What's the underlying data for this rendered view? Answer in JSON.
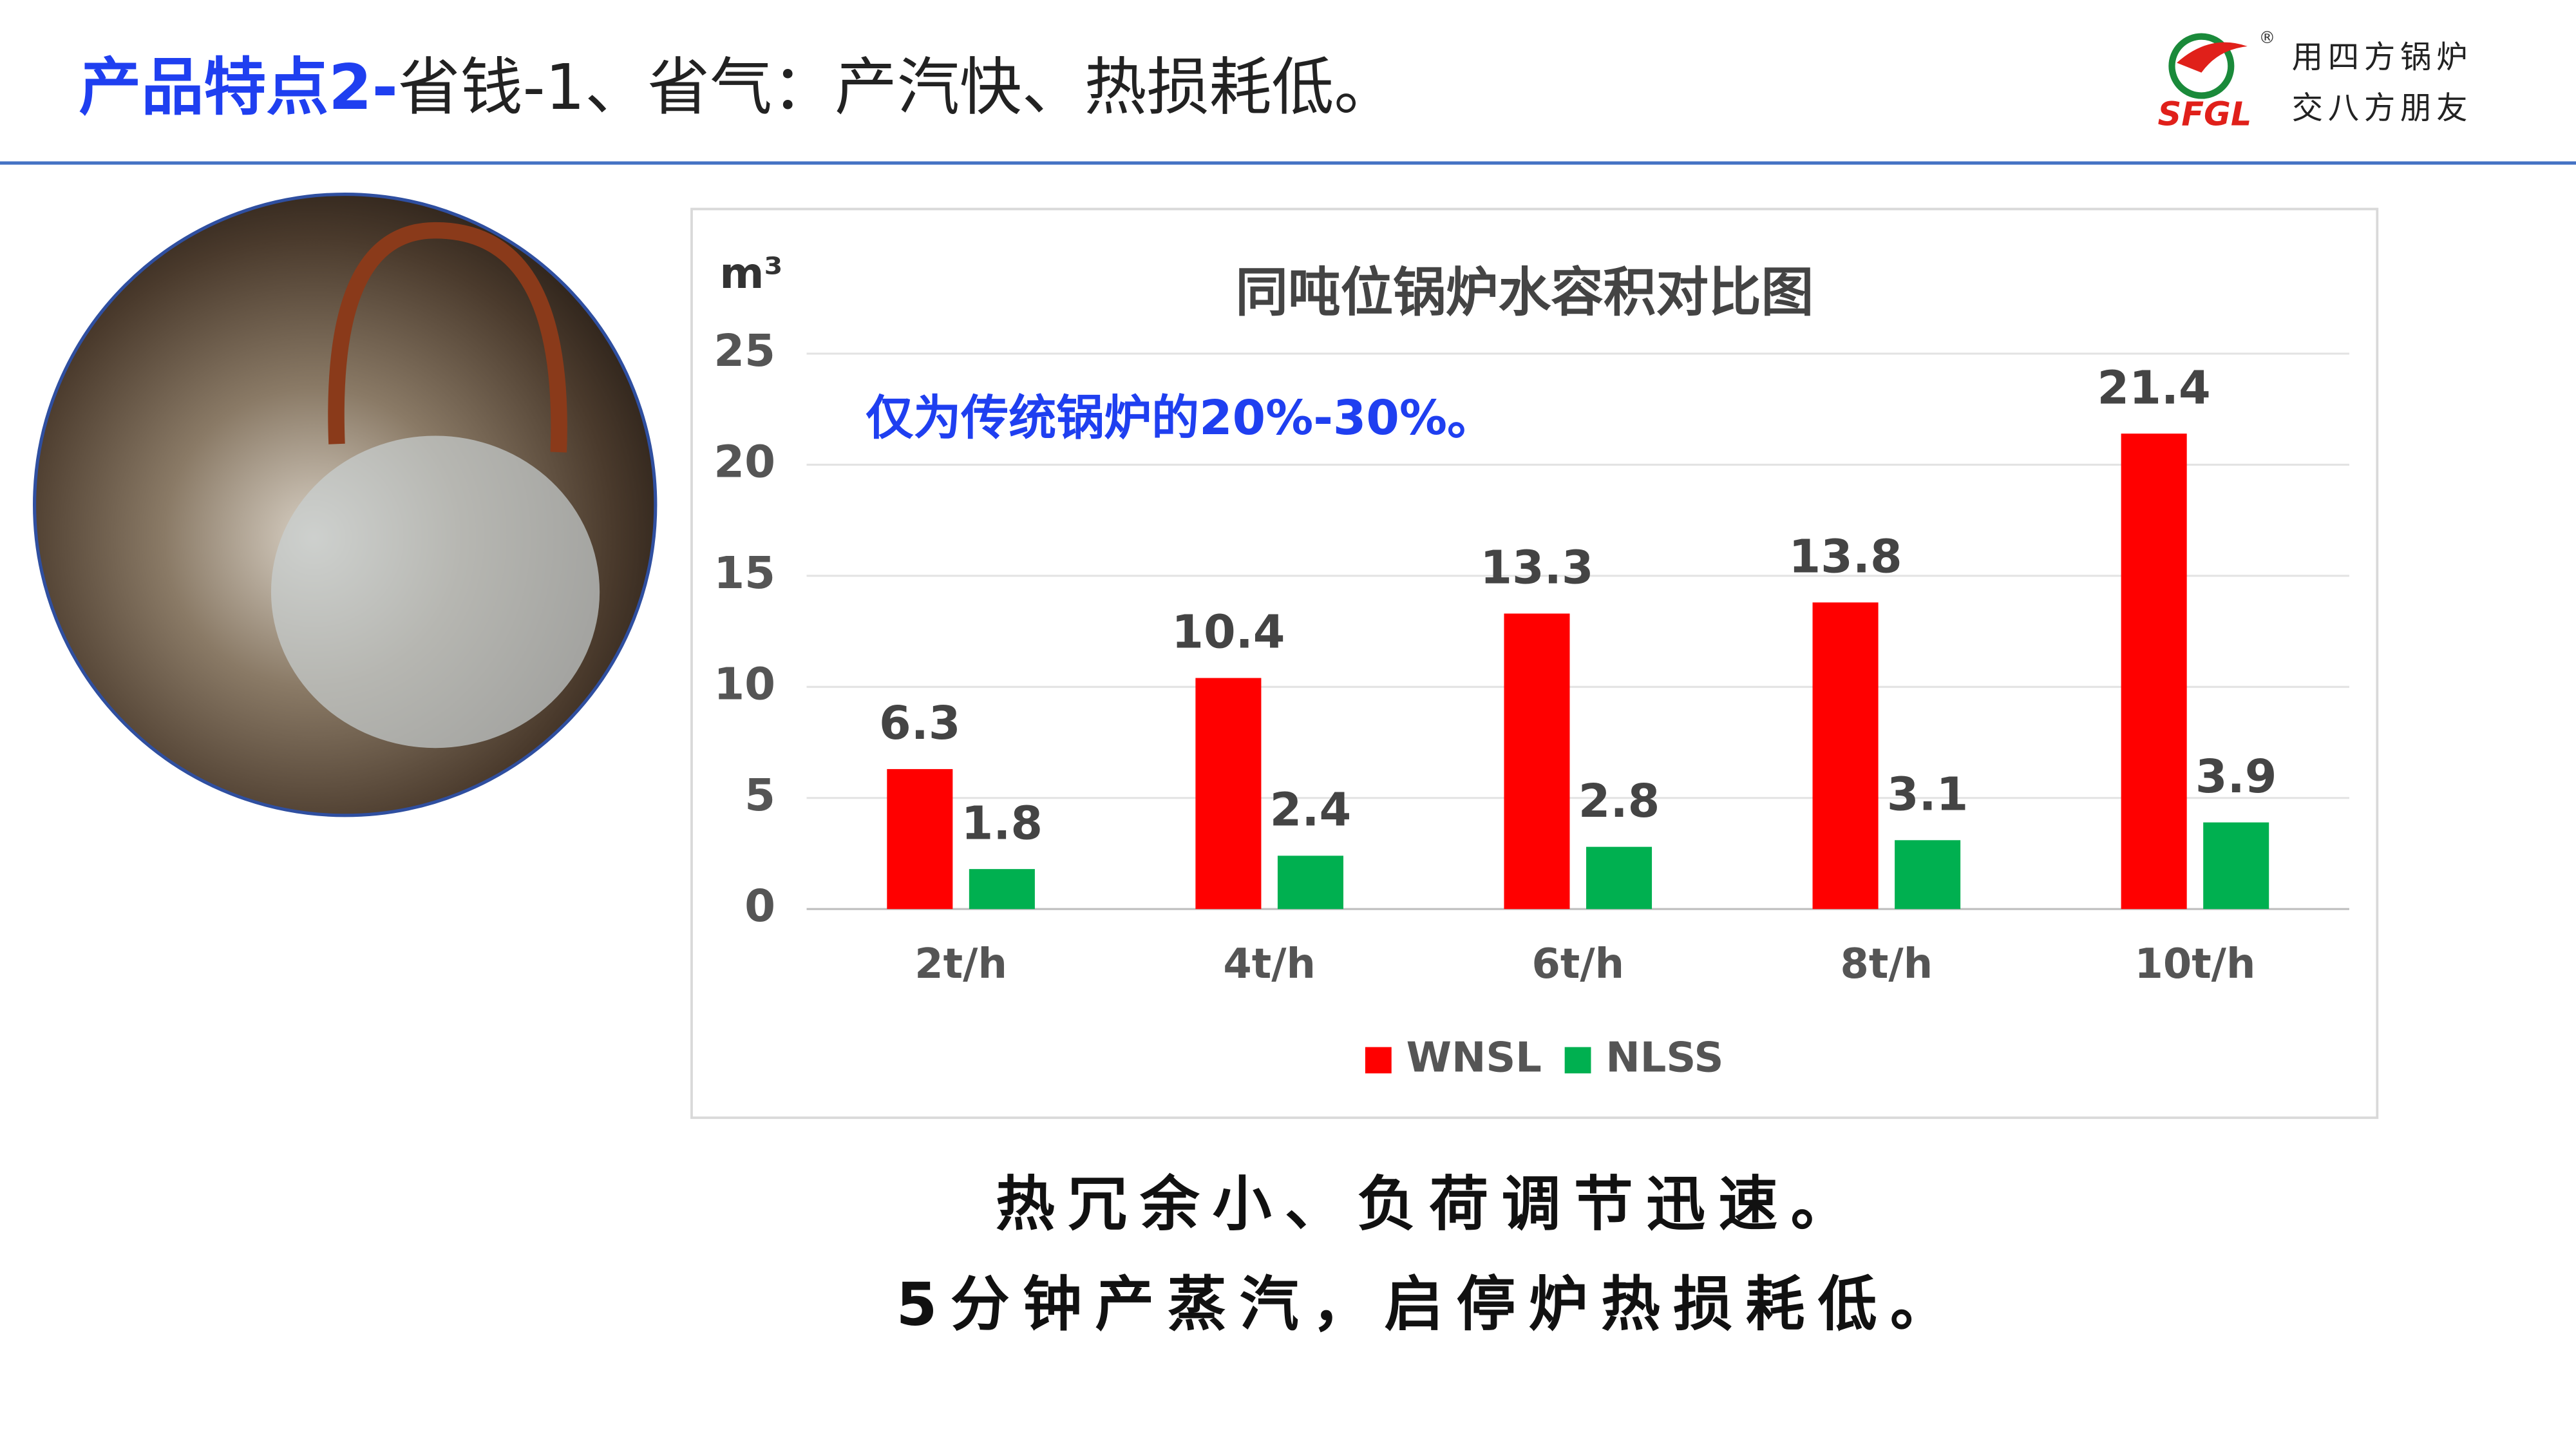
{
  "header": {
    "title_highlight": "产品特点2-",
    "title_rest": "省钱-1、省气：产汽快、热损耗低。",
    "logo": {
      "mark": "SFGL",
      "registered": "®",
      "slogan_line1": "用四方锅炉",
      "slogan_line2": "交八方朋友"
    }
  },
  "chart_data": {
    "type": "bar",
    "title": "同吨位锅炉水容积对比图",
    "y_label": "m³",
    "annotation": "仅为传统锅炉的20%-30%。",
    "categories": [
      "2t/h",
      "4t/h",
      "6t/h",
      "8t/h",
      "10t/h"
    ],
    "series": [
      {
        "name": "WNSL",
        "color": "#ff0000",
        "values": [
          6.3,
          10.4,
          13.3,
          13.8,
          21.4
        ]
      },
      {
        "name": "NLSS",
        "color": "#00b050",
        "values": [
          1.8,
          2.4,
          2.8,
          3.1,
          3.9
        ]
      }
    ],
    "ylim": [
      0,
      25
    ],
    "yticks": [
      0,
      5,
      10,
      15,
      20,
      25
    ],
    "grid": true,
    "legend": "bottom"
  },
  "footer": {
    "line1": "热冗余小、负荷调节迅速。",
    "line2": "5分钟产蒸汽，启停炉热损耗低。"
  }
}
